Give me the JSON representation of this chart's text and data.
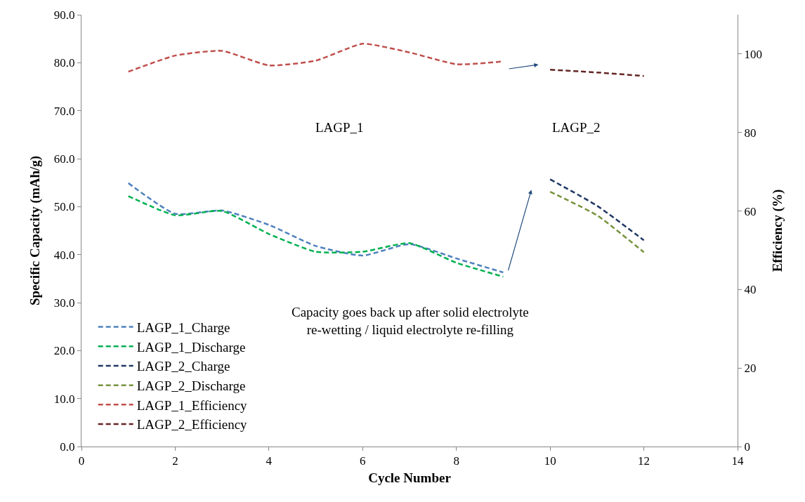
{
  "chart_data": {
    "type": "line",
    "xlabel": "Cycle Number",
    "ylabel": "Specific Capacity (mAh/g)",
    "y2label": "Efficiency (%)",
    "xlim": [
      0,
      14
    ],
    "xticks": [
      0,
      2,
      4,
      6,
      8,
      10,
      12,
      14
    ],
    "ylim": [
      0,
      90
    ],
    "yticks": [
      {
        "value": 0,
        "label": "0.0"
      },
      {
        "value": 10,
        "label": "10.0"
      },
      {
        "value": 20,
        "label": "20.0"
      },
      {
        "value": 30,
        "label": "30.0"
      },
      {
        "value": 40,
        "label": "40.0"
      },
      {
        "value": 50,
        "label": "50.0"
      },
      {
        "value": 60,
        "label": "60.0"
      },
      {
        "value": 70,
        "label": "70.0"
      },
      {
        "value": 80,
        "label": "80.0"
      },
      {
        "value": 90,
        "label": "90.0"
      }
    ],
    "y2lim": [
      0,
      110
    ],
    "y2ticks": [
      0,
      20,
      40,
      60,
      80,
      100
    ],
    "legend": "bottom left",
    "line_style": "dashed",
    "marker": "none",
    "series": [
      {
        "name": "LAGP_1_Charge",
        "color": "#4f81bd",
        "x": [
          1,
          2,
          3,
          4,
          5,
          6,
          7,
          8,
          9
        ],
        "values": [
          54.9,
          48.5,
          49.2,
          46.2,
          41.8,
          39.8,
          42.2,
          39.2,
          36.3
        ]
      },
      {
        "name": "LAGP_1_Discharge",
        "color": "#00b050",
        "x": [
          1,
          2,
          3,
          4,
          5,
          6,
          7,
          8,
          9
        ],
        "values": [
          52.2,
          48.2,
          49.1,
          44.3,
          40.6,
          40.6,
          42.4,
          38.3,
          35.4
        ]
      },
      {
        "name": "LAGP_2_Charge",
        "color": "#1f3864",
        "x": [
          10,
          11,
          12
        ],
        "values": [
          55.7,
          50.2,
          43.0
        ]
      },
      {
        "name": "LAGP_2_Discharge",
        "color": "#77933c",
        "x": [
          10,
          11,
          12
        ],
        "values": [
          53.1,
          48.2,
          40.5
        ]
      },
      {
        "name": "LAGP_1_Efficiency",
        "color": "#c0504d",
        "axis": "y2",
        "x": [
          1,
          2,
          3,
          4,
          5,
          6,
          7,
          8,
          9
        ],
        "values": [
          95.5,
          99.6,
          100.8,
          97.1,
          98.3,
          102.6,
          100.4,
          97.4,
          98.1
        ]
      },
      {
        "name": "LAGP_2_Efficiency",
        "color": "#632523",
        "axis": "y2",
        "x": [
          10,
          11,
          12
        ],
        "values": [
          96.0,
          95.3,
          94.4
        ]
      }
    ],
    "annotations": [
      "LAGP_1",
      "LAGP_2",
      "Capacity goes back up after solid electrolyte\nre-wetting / liquid electrolyte re-filling"
    ]
  }
}
